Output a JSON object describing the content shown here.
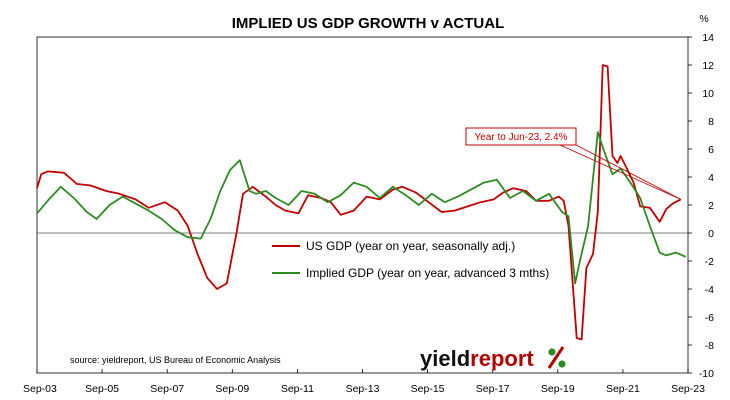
{
  "chart_data": {
    "type": "line",
    "title": "IMPLIED US GDP GROWTH v ACTUAL",
    "y_unit_label": "%",
    "ylim": [
      -10,
      14
    ],
    "y_ticks": [
      "14",
      "12",
      "10",
      "8",
      "6",
      "4",
      "2",
      "0",
      "-2",
      "-4",
      "-6",
      "-8",
      "-10"
    ],
    "x_ticks": [
      "Sep-03",
      "Sep-05",
      "Sep-07",
      "Sep-09",
      "Sep-11",
      "Sep-13",
      "Sep-15",
      "Sep-17",
      "Sep-19",
      "Sep-21",
      "Sep-23"
    ],
    "grid": false,
    "legend_position": "center",
    "series": [
      {
        "name": "US GDP (year on year, seasonally adj.)",
        "color": "#c00000",
        "x": [
          2003.67,
          2003.8,
          2004.0,
          2004.5,
          2004.9,
          2005.3,
          2005.8,
          2006.2,
          2006.7,
          2007.1,
          2007.6,
          2008.0,
          2008.3,
          2008.6,
          2008.9,
          2009.2,
          2009.5,
          2009.8,
          2010.0,
          2010.3,
          2010.7,
          2011.0,
          2011.3,
          2011.7,
          2012.0,
          2012.4,
          2012.7,
          2013.0,
          2013.4,
          2013.8,
          2014.2,
          2014.6,
          2014.9,
          2015.3,
          2015.7,
          2016.1,
          2016.5,
          2016.9,
          2017.3,
          2017.7,
          2018.0,
          2018.3,
          2018.7,
          2019.0,
          2019.4,
          2019.7,
          2019.85,
          2020.0,
          2020.25,
          2020.4,
          2020.55,
          2020.75,
          2020.9,
          2021.05,
          2021.2,
          2021.35,
          2021.5,
          2021.6,
          2021.75,
          2022.0,
          2022.2,
          2022.5,
          2022.8,
          2023.0,
          2023.2,
          2023.45
        ],
        "y": [
          3.2,
          4.2,
          4.4,
          4.3,
          3.5,
          3.4,
          3.0,
          2.8,
          2.4,
          1.8,
          2.2,
          1.6,
          0.5,
          -1.5,
          -3.2,
          -4.0,
          -3.6,
          0.0,
          2.8,
          3.3,
          2.6,
          2.0,
          1.6,
          1.4,
          2.7,
          2.5,
          2.2,
          1.3,
          1.6,
          2.6,
          2.4,
          3.1,
          3.3,
          2.9,
          2.2,
          1.5,
          1.6,
          1.9,
          2.2,
          2.4,
          2.9,
          3.2,
          3.0,
          2.3,
          2.3,
          2.6,
          2.3,
          0.5,
          -7.5,
          -7.6,
          -2.5,
          -1.5,
          1.5,
          12.0,
          11.9,
          5.5,
          5.0,
          5.5,
          4.8,
          3.6,
          1.9,
          1.8,
          0.8,
          1.7,
          2.1,
          2.4
        ]
      },
      {
        "name": "Implied GDP (year on year, advanced 3 mths)",
        "color": "#2e8b22",
        "x": [
          2003.67,
          2004.0,
          2004.4,
          2004.8,
          2005.2,
          2005.5,
          2005.9,
          2006.3,
          2006.7,
          2007.1,
          2007.5,
          2007.9,
          2008.3,
          2008.7,
          2009.0,
          2009.3,
          2009.6,
          2009.9,
          2010.2,
          2010.4,
          2010.7,
          2011.0,
          2011.4,
          2011.8,
          2012.2,
          2012.6,
          2013.0,
          2013.4,
          2013.8,
          2014.2,
          2014.6,
          2015.0,
          2015.4,
          2015.8,
          2016.2,
          2016.6,
          2017.0,
          2017.4,
          2017.8,
          2018.2,
          2018.6,
          2019.0,
          2019.4,
          2019.8,
          2020.0,
          2020.2,
          2020.35,
          2020.6,
          2020.9,
          2021.1,
          2021.35,
          2021.6,
          2021.9,
          2022.2,
          2022.5,
          2022.8,
          2023.0,
          2023.3,
          2023.6
        ],
        "y": [
          1.4,
          2.3,
          3.3,
          2.5,
          1.5,
          1.0,
          2.0,
          2.6,
          2.1,
          1.6,
          1.0,
          0.2,
          -0.3,
          -0.4,
          1.0,
          3.0,
          4.5,
          5.2,
          3.0,
          2.8,
          3.0,
          2.5,
          2.0,
          3.0,
          2.8,
          2.2,
          2.7,
          3.6,
          3.3,
          2.5,
          3.3,
          2.7,
          2.0,
          2.8,
          2.2,
          2.6,
          3.1,
          3.6,
          3.8,
          2.5,
          3.0,
          2.3,
          2.8,
          1.5,
          1.2,
          -3.6,
          -2.0,
          0.5,
          7.2,
          5.8,
          4.2,
          4.6,
          3.6,
          2.5,
          0.5,
          -1.4,
          -1.6,
          -1.4,
          -1.7
        ]
      }
    ],
    "annotations": {
      "callout": "Year to Jun-23, 2.4%",
      "source": "source: yieldreport, US Bureau of Economic Analysis"
    }
  },
  "logo": {
    "text_a": "yield",
    "text_b": "report"
  }
}
